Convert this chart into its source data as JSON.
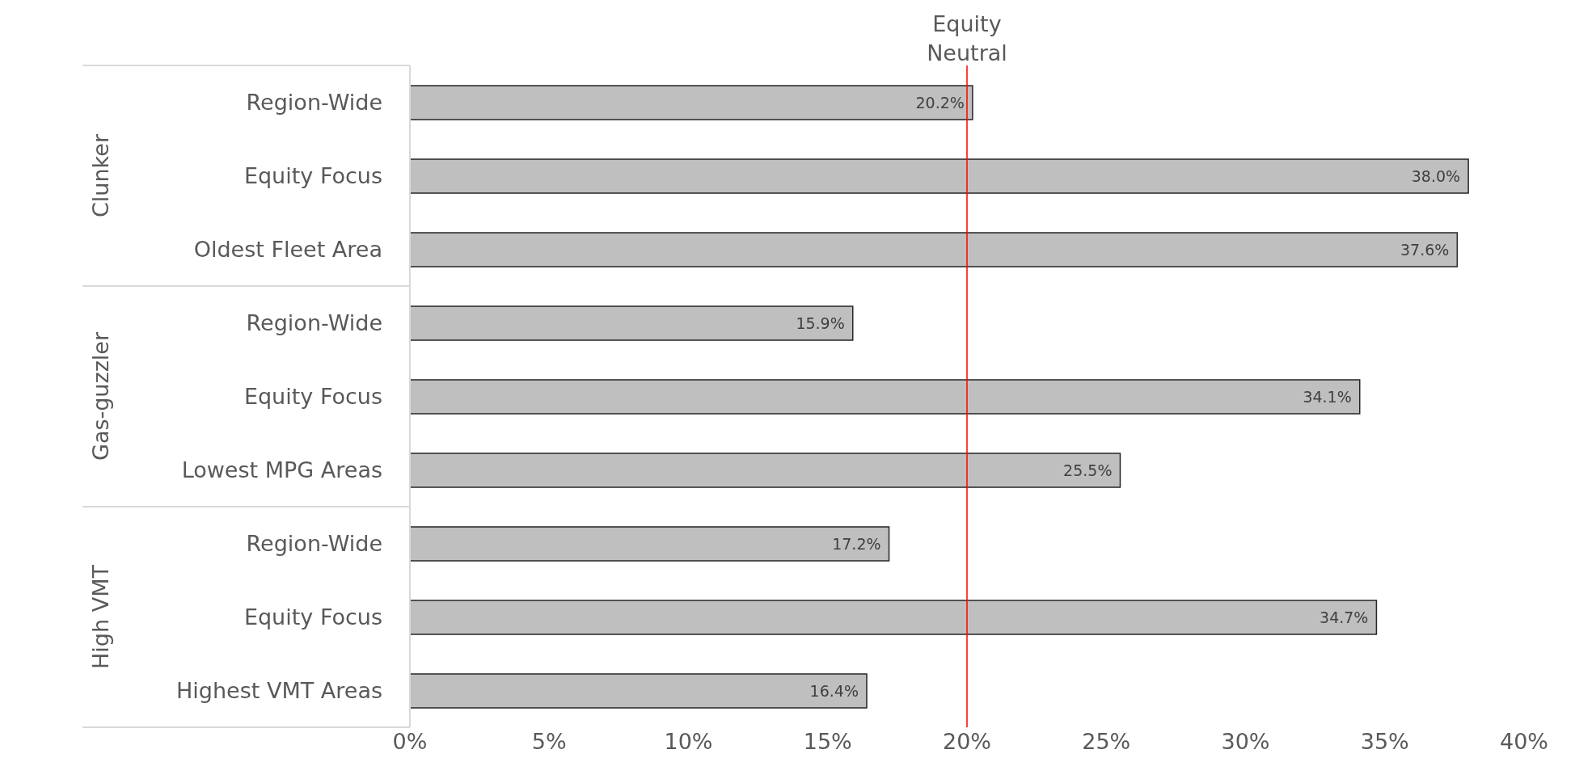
{
  "chart_data": {
    "type": "bar",
    "orientation": "horizontal",
    "categories": [
      "Region-Wide",
      "Equity Focus",
      "Oldest Fleet Area",
      "Region-Wide",
      "Equity Focus",
      "Lowest MPG Areas",
      "Region-Wide",
      "Equity Focus",
      "Highest VMT Areas"
    ],
    "values": [
      20.2,
      38.0,
      37.6,
      15.9,
      34.1,
      25.5,
      17.2,
      34.7,
      16.4
    ],
    "value_labels": [
      "20.2%",
      "38.0%",
      "37.6%",
      "15.9%",
      "34.1%",
      "25.5%",
      "17.2%",
      "34.7%",
      "16.4%"
    ],
    "color": "#bfbfbf",
    "xlim": [
      0,
      40
    ],
    "xticks": [
      {
        "value": 0,
        "label": "0%"
      },
      {
        "value": 5,
        "label": "5%"
      },
      {
        "value": 10,
        "label": "10%"
      },
      {
        "value": 15,
        "label": "15%"
      },
      {
        "value": 20,
        "label": "20%"
      },
      {
        "value": 25,
        "label": "25%"
      },
      {
        "value": 30,
        "label": "30%"
      },
      {
        "value": 35,
        "label": "35%"
      },
      {
        "value": 40,
        "label": "40%"
      }
    ],
    "ref_lines": [
      {
        "axis": "x",
        "value": 20,
        "label": "Equity Neutral",
        "color": "#ff0000"
      }
    ],
    "annotations": [
      "Clunker",
      "Gas-guzzler",
      "High VMT"
    ]
  }
}
